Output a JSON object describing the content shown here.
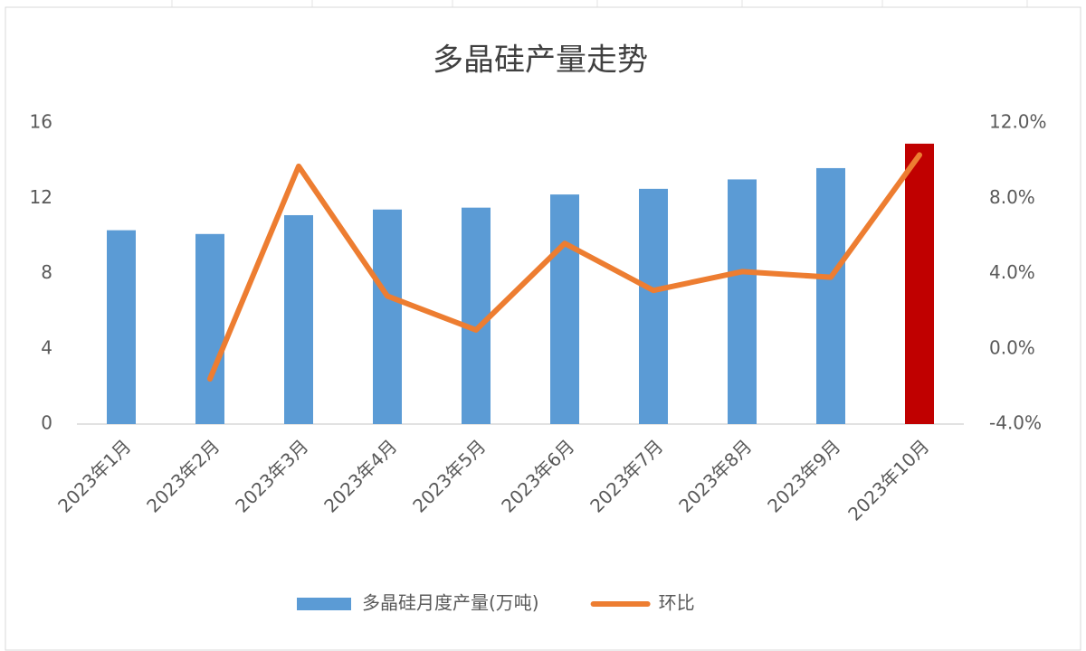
{
  "chart_data": {
    "type": "combo",
    "title": "多晶硅产量走势",
    "categories": [
      "2023年1月",
      "2023年2月",
      "2023年3月",
      "2023年4月",
      "2023年5月",
      "2023年6月",
      "2023年7月",
      "2023年8月",
      "2023年9月",
      "2023年10月"
    ],
    "series": [
      {
        "name": "多晶硅月度产量(万吨)",
        "type": "bar",
        "axis": "y",
        "color": "#5b9bd5",
        "point_colors": [
          "#5b9bd5",
          "#5b9bd5",
          "#5b9bd5",
          "#5b9bd5",
          "#5b9bd5",
          "#5b9bd5",
          "#5b9bd5",
          "#5b9bd5",
          "#5b9bd5",
          "#c00000"
        ],
        "values": [
          10.3,
          10.1,
          11.1,
          11.4,
          11.5,
          12.2,
          12.5,
          13.0,
          13.6,
          14.9
        ]
      },
      {
        "name": "环比",
        "type": "line",
        "axis": "y2",
        "color": "#ed7d31",
        "values": [
          null,
          -1.6,
          9.7,
          2.8,
          1.0,
          5.6,
          3.1,
          4.1,
          3.8,
          10.3
        ]
      }
    ],
    "ylim": [
      0,
      16
    ],
    "yticks": [
      0,
      4,
      8,
      12,
      16
    ],
    "y2lim": [
      -4,
      12
    ],
    "y2ticks": [
      {
        "value": -4,
        "label": "-4.0%"
      },
      {
        "value": 0,
        "label": "0.0%"
      },
      {
        "value": 4,
        "label": "4.0%"
      },
      {
        "value": 8,
        "label": "8.0%"
      },
      {
        "value": 12,
        "label": "12.0%"
      }
    ],
    "grid": false,
    "legend": "bottom"
  }
}
